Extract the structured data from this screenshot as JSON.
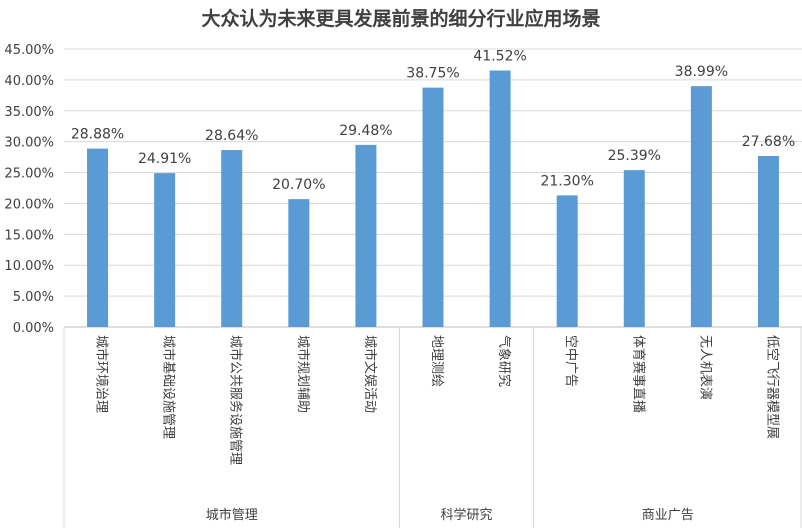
{
  "chart_data": {
    "type": "bar",
    "title": "大众认为未来更具发展前景的细分行业应用场景",
    "xlabel": "",
    "ylabel": "",
    "ylim": [
      0,
      45
    ],
    "yticks": [
      "0.00%",
      "5.00%",
      "10.00%",
      "15.00%",
      "20.00%",
      "25.00%",
      "30.00%",
      "35.00%",
      "40.00%",
      "45.00%"
    ],
    "grid": true,
    "legend": "none",
    "color": "#5B9BD5",
    "categories": [
      "城市环境治理",
      "城市基础设施管理",
      "城市公共服务设施管理",
      "城市规划辅助",
      "城市文娱活动",
      "地理测绘",
      "气象研究",
      "空中广告",
      "体育赛事直播",
      "无人机表演",
      "低空飞行器模型展"
    ],
    "values": [
      28.88,
      24.91,
      28.64,
      20.7,
      29.48,
      38.75,
      41.52,
      21.3,
      25.39,
      38.99,
      27.68
    ],
    "data_labels": [
      "28.88%",
      "24.91%",
      "28.64%",
      "20.70%",
      "29.48%",
      "38.75%",
      "41.52%",
      "21.30%",
      "25.39%",
      "38.99%",
      "27.68%"
    ],
    "groups": [
      {
        "name": "城市管理",
        "count": 5
      },
      {
        "name": "科学研究",
        "count": 2
      },
      {
        "name": "商业广告",
        "count": 4
      }
    ]
  }
}
